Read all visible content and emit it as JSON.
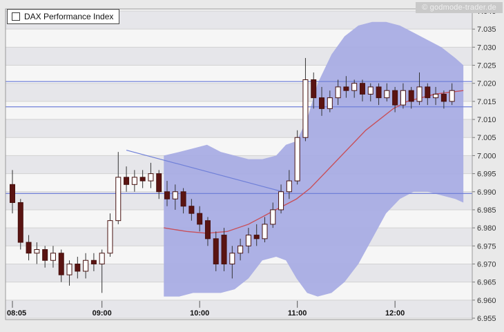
{
  "header": {
    "legend_label": "DAX Performance Index",
    "watermark": "© godmode-trader.de"
  },
  "chart_data": {
    "type": "candlestick",
    "title": "DAX Performance Index",
    "timeframe": "5-minute intraday",
    "grid": true,
    "y_axis": {
      "min": 6.955,
      "max": 7.04,
      "step": 0.005,
      "tick_labels": [
        "7.040",
        "7.035",
        "7.030",
        "7.025",
        "7.020",
        "7.015",
        "7.010",
        "7.005",
        "7.000",
        "6.995",
        "6.990",
        "6.985",
        "6.980",
        "6.975",
        "6.970",
        "6.965",
        "6.960",
        "6.955"
      ]
    },
    "x_axis": {
      "ticks": [
        {
          "label": "08:05",
          "index": 0
        },
        {
          "label": "09:00",
          "index": 11
        },
        {
          "label": "10:00",
          "index": 23
        },
        {
          "label": "11:00",
          "index": 35
        },
        {
          "label": "12:00",
          "index": 47
        }
      ]
    },
    "horizontal_lines": [
      7.0205,
      7.0135,
      6.9895
    ],
    "trend_line": {
      "from": {
        "index": 14.0,
        "value": 7.0015
      },
      "to": {
        "index": 33.2,
        "value": 6.99
      }
    },
    "moving_average": {
      "indices": [
        18.6,
        21.4,
        23.9,
        26.4,
        29.0,
        31.5,
        33.2,
        34.9,
        36.6,
        38.3,
        40.0,
        41.7,
        43.4,
        45.1,
        46.8,
        48.5,
        50.2,
        51.9,
        53.6,
        55.4
      ],
      "values": [
        6.98,
        6.979,
        6.9785,
        6.979,
        6.981,
        6.984,
        6.986,
        6.988,
        6.991,
        6.995,
        6.999,
        7.003,
        7.007,
        7.01,
        7.013,
        7.015,
        7.016,
        7.017,
        7.0175,
        7.018
      ]
    },
    "band": {
      "indices": [
        18.6,
        20.5,
        22.2,
        23.9,
        25.6,
        27.3,
        29.0,
        30.7,
        32.4,
        33.6,
        34.9,
        36.2,
        37.5,
        39.2,
        40.8,
        42.5,
        44.2,
        45.9,
        47.6,
        49.3,
        51.0,
        52.7,
        54.4,
        55.4
      ],
      "upper": [
        7.0,
        7.001,
        7.002,
        7.003,
        7.001,
        7.0,
        6.999,
        6.999,
        7.0,
        7.003,
        7.004,
        7.01,
        7.02,
        7.028,
        7.033,
        7.036,
        7.037,
        7.037,
        7.036,
        7.034,
        7.032,
        7.03,
        7.027,
        7.025
      ],
      "lower": [
        6.961,
        6.961,
        6.962,
        6.962,
        6.962,
        6.963,
        6.966,
        6.971,
        6.972,
        6.971,
        6.966,
        6.962,
        6.961,
        6.962,
        6.965,
        6.97,
        6.977,
        6.984,
        6.988,
        6.99,
        6.99,
        6.989,
        6.988,
        6.987
      ]
    },
    "candles_format": [
      "time",
      "open",
      "high",
      "low",
      "close"
    ],
    "candles": [
      [
        "08:05",
        6.992,
        6.996,
        6.984,
        6.987
      ],
      [
        "08:10",
        6.987,
        6.988,
        6.974,
        6.976
      ],
      [
        "08:15",
        6.976,
        6.978,
        6.971,
        6.973
      ],
      [
        "08:20",
        6.973,
        6.976,
        6.97,
        6.974
      ],
      [
        "08:25",
        6.974,
        6.975,
        6.969,
        6.971
      ],
      [
        "08:30",
        6.971,
        6.975,
        6.969,
        6.973
      ],
      [
        "08:35",
        6.973,
        6.974,
        6.965,
        6.967
      ],
      [
        "08:40",
        6.967,
        6.971,
        6.964,
        6.97
      ],
      [
        "08:45",
        6.97,
        6.972,
        6.966,
        6.968
      ],
      [
        "08:50",
        6.968,
        6.973,
        6.966,
        6.971
      ],
      [
        "08:55",
        6.971,
        6.973,
        6.968,
        6.97
      ],
      [
        "09:00",
        6.97,
        6.974,
        6.962,
        6.973
      ],
      [
        "09:05",
        6.973,
        6.984,
        6.972,
        6.982
      ],
      [
        "09:10",
        6.982,
        7.001,
        6.981,
        6.994
      ],
      [
        "09:15",
        6.994,
        6.997,
        6.99,
        6.992
      ],
      [
        "09:20",
        6.992,
        6.996,
        6.99,
        6.994
      ],
      [
        "09:25",
        6.994,
        6.996,
        6.991,
        6.993
      ],
      [
        "09:30",
        6.993,
        6.998,
        6.991,
        6.995
      ],
      [
        "09:35",
        6.995,
        6.996,
        6.988,
        6.99
      ],
      [
        "09:40",
        6.99,
        6.993,
        6.986,
        6.988
      ],
      [
        "09:45",
        6.988,
        6.992,
        6.985,
        6.99
      ],
      [
        "09:50",
        6.99,
        6.991,
        6.984,
        6.986
      ],
      [
        "09:55",
        6.986,
        6.988,
        6.982,
        6.984
      ],
      [
        "10:00",
        6.984,
        6.986,
        6.979,
        6.981
      ],
      [
        "10:05",
        6.982,
        6.983,
        6.975,
        6.977
      ],
      [
        "10:10",
        6.977,
        6.979,
        6.968,
        6.97
      ],
      [
        "10:15",
        6.978,
        6.98,
        6.968,
        6.97
      ],
      [
        "10:20",
        6.97,
        6.975,
        6.966,
        6.973
      ],
      [
        "10:25",
        6.973,
        6.977,
        6.971,
        6.975
      ],
      [
        "10:30",
        6.975,
        6.98,
        6.973,
        6.978
      ],
      [
        "10:35",
        6.978,
        6.981,
        6.975,
        6.977
      ],
      [
        "10:40",
        6.977,
        6.983,
        6.976,
        6.981
      ],
      [
        "10:45",
        6.981,
        6.987,
        6.98,
        6.985
      ],
      [
        "10:50",
        6.985,
        6.992,
        6.984,
        6.99
      ],
      [
        "10:55",
        6.99,
        6.996,
        6.988,
        6.993
      ],
      [
        "11:00",
        6.993,
        7.007,
        6.992,
        7.005
      ],
      [
        "11:05",
        7.005,
        7.027,
        7.004,
        7.021
      ],
      [
        "11:10",
        7.021,
        7.023,
        7.013,
        7.016
      ],
      [
        "11:15",
        7.016,
        7.019,
        7.011,
        7.013
      ],
      [
        "11:20",
        7.013,
        7.018,
        7.012,
        7.016
      ],
      [
        "11:25",
        7.016,
        7.021,
        7.014,
        7.019
      ],
      [
        "11:30",
        7.019,
        7.022,
        7.016,
        7.018
      ],
      [
        "11:35",
        7.018,
        7.021,
        7.016,
        7.02
      ],
      [
        "11:40",
        7.02,
        7.021,
        7.015,
        7.017
      ],
      [
        "11:45",
        7.017,
        7.02,
        7.015,
        7.019
      ],
      [
        "11:50",
        7.019,
        7.02,
        7.014,
        7.016
      ],
      [
        "11:55",
        7.016,
        7.02,
        7.015,
        7.018
      ],
      [
        "12:00",
        7.018,
        7.019,
        7.012,
        7.014
      ],
      [
        "12:05",
        7.014,
        7.02,
        7.013,
        7.018
      ],
      [
        "12:10",
        7.018,
        7.019,
        7.013,
        7.015
      ],
      [
        "12:15",
        7.015,
        7.023,
        7.014,
        7.019
      ],
      [
        "12:20",
        7.019,
        7.02,
        7.014,
        7.016
      ],
      [
        "12:25",
        7.016,
        7.019,
        7.014,
        7.017
      ],
      [
        "12:30",
        7.017,
        7.018,
        7.013,
        7.015
      ],
      [
        "12:35",
        7.015,
        7.02,
        7.014,
        7.018
      ]
    ],
    "colors": {
      "background": "#e9e9e9",
      "stripe_a": "#e6e6ea",
      "stripe_b": "#f6f6f6",
      "grid": "#d2d2d2",
      "plot_border": "#999999",
      "band": "#a9ade4",
      "ma_line": "#c8505a",
      "trend_line": "#7080d8",
      "h_line": "#7080d8",
      "candle_up_fill": "#ffffff",
      "candle_down_fill": "#5a1412",
      "candle_border": "#46100e",
      "wick": "#333333",
      "axis_text": "#333333",
      "x_label_text": "#111111"
    }
  }
}
